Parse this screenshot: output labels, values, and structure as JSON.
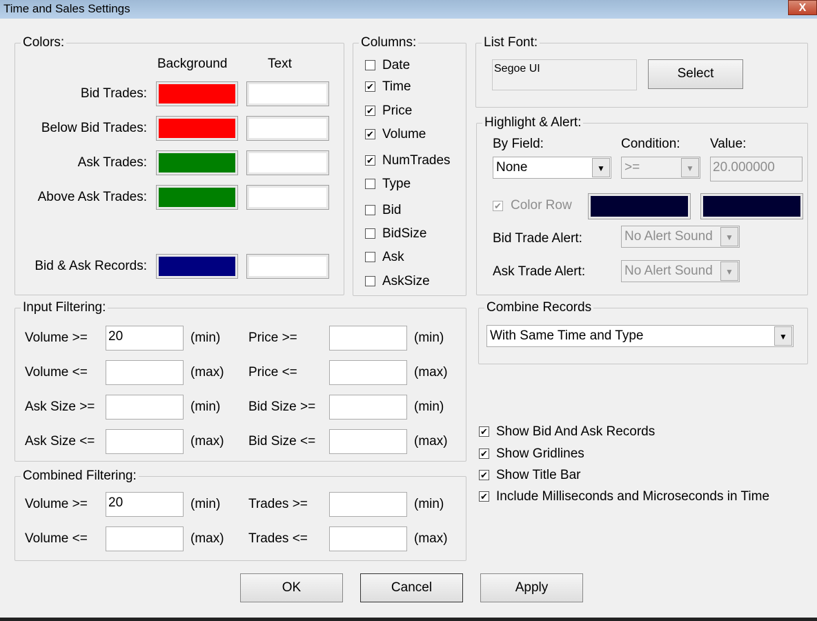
{
  "window": {
    "title": "Time and Sales Settings",
    "close_label": "X"
  },
  "colors": {
    "title": "Colors:",
    "bg_header": "Background",
    "text_header": "Text",
    "rows": [
      {
        "label": "Bid Trades:",
        "bg": "#ff0000",
        "text": "#ffffff"
      },
      {
        "label": "Below Bid Trades:",
        "bg": "#ff0000",
        "text": "#ffffff"
      },
      {
        "label": "Ask Trades:",
        "bg": "#008000",
        "text": "#ffffff"
      },
      {
        "label": "Above Ask Trades:",
        "bg": "#008000",
        "text": "#ffffff"
      },
      {
        "label": "Bid & Ask Records:",
        "bg": "#000080",
        "text": "#ffffff"
      }
    ]
  },
  "columns": {
    "title": "Columns:",
    "items": [
      {
        "label": "Date",
        "checked": false
      },
      {
        "label": "Time",
        "checked": true
      },
      {
        "label": "Price",
        "checked": true
      },
      {
        "label": "Volume",
        "checked": true
      },
      {
        "label": "NumTrades",
        "checked": true
      },
      {
        "label": "Type",
        "checked": false
      },
      {
        "label": "Bid",
        "checked": false
      },
      {
        "label": "BidSize",
        "checked": false
      },
      {
        "label": "Ask",
        "checked": false
      },
      {
        "label": "AskSize",
        "checked": false
      }
    ]
  },
  "list_font": {
    "title": "List Font:",
    "font": "Segoe UI",
    "select_label": "Select"
  },
  "highlight": {
    "title": "Highlight & Alert:",
    "by_field_label": "By Field:",
    "by_field": "None",
    "condition_label": "Condition:",
    "condition": ">=",
    "value_label": "Value:",
    "value": "20.000000",
    "color_row_label": "Color Row",
    "color_row_checked": true,
    "color1": "#000033",
    "color2": "#000033",
    "bid_alert_label": "Bid Trade Alert:",
    "bid_alert": "No Alert Sound",
    "ask_alert_label": "Ask Trade Alert:",
    "ask_alert": "No Alert Sound"
  },
  "combine": {
    "title": "Combine Records",
    "value": "With Same Time and Type"
  },
  "input_filtering": {
    "title": "Input Filtering:",
    "rows": [
      {
        "l1": "Volume >=",
        "v1": "20",
        "u1": "(min)",
        "l2": "Price >=",
        "v2": "",
        "u2": "(min)"
      },
      {
        "l1": "Volume <=",
        "v1": "",
        "u1": "(max)",
        "l2": "Price <=",
        "v2": "",
        "u2": "(max)"
      },
      {
        "l1": "Ask Size >=",
        "v1": "",
        "u1": "(min)",
        "l2": "Bid Size >=",
        "v2": "",
        "u2": "(min)"
      },
      {
        "l1": "Ask Size <=",
        "v1": "",
        "u1": "(max)",
        "l2": "Bid Size <=",
        "v2": "",
        "u2": "(max)"
      }
    ]
  },
  "combined_filtering": {
    "title": "Combined Filtering:",
    "rows": [
      {
        "l1": "Volume >=",
        "v1": "20",
        "u1": "(min)",
        "l2": "Trades >=",
        "v2": "",
        "u2": "(min)"
      },
      {
        "l1": "Volume <=",
        "v1": "",
        "u1": "(max)",
        "l2": "Trades <=",
        "v2": "",
        "u2": "(max)"
      }
    ]
  },
  "options": [
    {
      "label": "Show Bid And Ask Records",
      "checked": true
    },
    {
      "label": "Show Gridlines",
      "checked": true
    },
    {
      "label": "Show Title Bar",
      "checked": true
    },
    {
      "label": "Include Milliseconds and Microseconds in Time",
      "checked": true
    }
  ],
  "buttons": {
    "ok": "OK",
    "cancel": "Cancel",
    "apply": "Apply"
  }
}
